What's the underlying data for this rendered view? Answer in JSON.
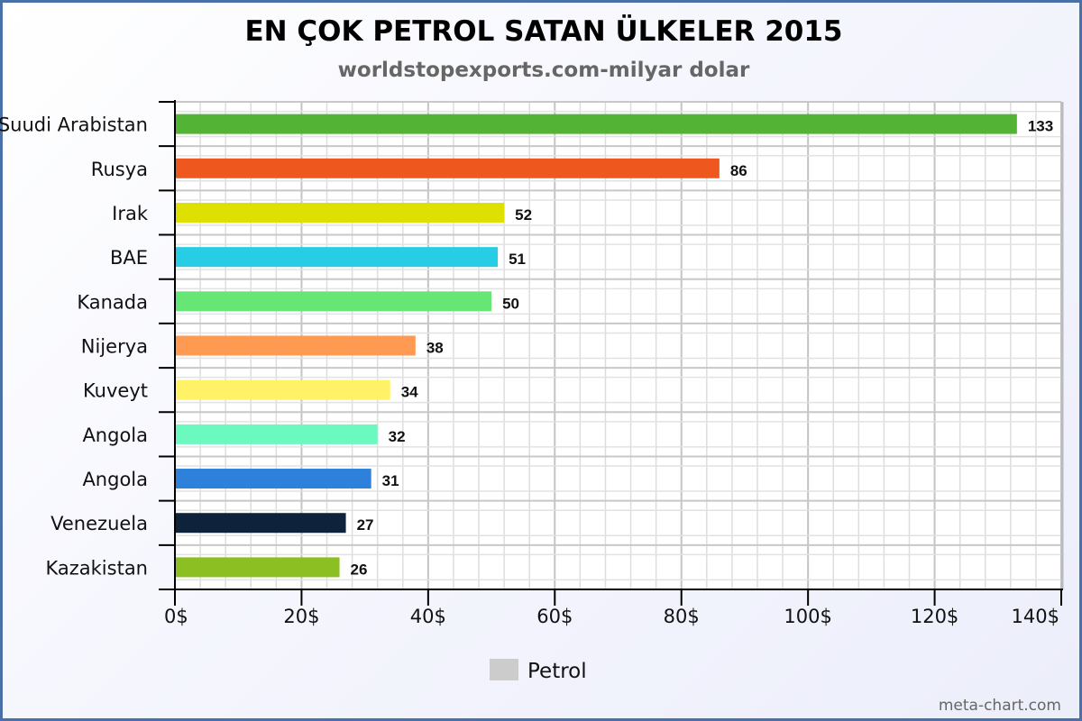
{
  "chart_data": {
    "type": "bar",
    "orientation": "horizontal",
    "title": "EN ÇOK PETROL SATAN ÜLKELER 2015",
    "subtitle": "worldstopexports.com-milyar dolar",
    "categories": [
      "Suudi Arabistan",
      "Rusya",
      "Irak",
      "BAE",
      "Kanada",
      "Nijerya",
      "Kuveyt",
      "Angola",
      "Angola",
      "Venezuela",
      "Kazakistan"
    ],
    "values": [
      133,
      86,
      52,
      51,
      50,
      38,
      34,
      32,
      31,
      27,
      26
    ],
    "colors": [
      "#52b334",
      "#ee581e",
      "#dde000",
      "#26cde4",
      "#66e775",
      "#ff9a52",
      "#fff266",
      "#6cf9c0",
      "#2d81da",
      "#0e223c",
      "#8bbf22"
    ],
    "xlim": [
      0,
      140
    ],
    "xticks": [
      0,
      20,
      40,
      60,
      80,
      100,
      120,
      140
    ],
    "tick_suffix": "$",
    "grid": true,
    "legend": {
      "position": "bottom",
      "entries": [
        {
          "name": "Petrol",
          "color": "#cccccc"
        }
      ]
    },
    "credit": "meta-chart.com"
  }
}
